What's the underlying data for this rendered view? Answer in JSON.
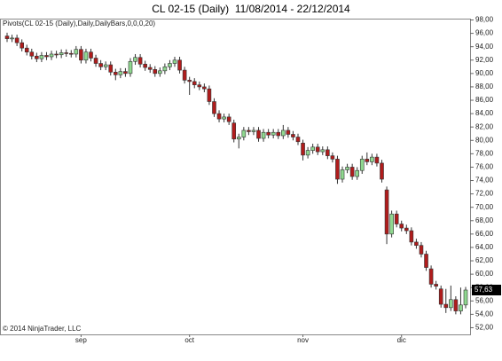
{
  "chart_data": {
    "type": "candlestick",
    "title": "CL 02-15 (Daily)  11/08/2014 - 22/12/2014",
    "subtitle": "Pivots(CL 02-15 (Daily),Daily,DailyBars,0,0,0,20)",
    "copyright": "© 2014 NinjaTrader, LLC",
    "categories": [
      null,
      null,
      null,
      null,
      null,
      null,
      null,
      null,
      null,
      null,
      null,
      null,
      null,
      null,
      null,
      "sep",
      null,
      null,
      null,
      null,
      null,
      null,
      null,
      null,
      null,
      null,
      null,
      null,
      null,
      null,
      null,
      null,
      null,
      null,
      null,
      null,
      null,
      "oct",
      null,
      null,
      null,
      null,
      null,
      null,
      null,
      null,
      null,
      null,
      null,
      null,
      null,
      null,
      null,
      null,
      null,
      null,
      null,
      null,
      null,
      null,
      "nov",
      null,
      null,
      null,
      null,
      null,
      null,
      null,
      null,
      null,
      null,
      null,
      null,
      null,
      null,
      null,
      null,
      null,
      null,
      null,
      "dic",
      null,
      null,
      null,
      null,
      null,
      null,
      null,
      null,
      null,
      null,
      null,
      null,
      null
    ],
    "open": [
      95.6,
      95.2,
      95.3,
      94.6,
      93.8,
      93.2,
      92.6,
      92.2,
      92.7,
      92.5,
      92.9,
      92.8,
      93.1,
      93.0,
      92.9,
      93.6,
      92.0,
      93.2,
      92.3,
      91.5,
      91.0,
      91.3,
      90.2,
      89.8,
      90.3,
      90.0,
      91.8,
      92.4,
      91.4,
      90.9,
      90.6,
      90.0,
      90.4,
      91.0,
      91.5,
      92.0,
      90.5,
      89.0,
      88.8,
      88.3,
      88.0,
      87.7,
      85.8,
      84.0,
      83.2,
      83.5,
      82.6,
      80.2,
      80.5,
      81.5,
      81.3,
      81.5,
      80.3,
      81.2,
      80.8,
      81.2,
      80.7,
      81.5,
      80.9,
      80.5,
      79.6,
      77.8,
      78.5,
      79.0,
      78.3,
      78.6,
      77.7,
      77.2,
      74.2,
      75.6,
      76.0,
      74.6,
      75.5,
      77.2,
      76.8,
      77.5,
      76.6,
      72.6,
      66.0,
      69.0,
      67.5,
      66.9,
      66.5,
      64.8,
      64.3,
      63.0,
      60.8,
      58.5,
      57.8,
      55.5,
      55.0,
      56.2,
      54.5,
      55.4
    ],
    "high": [
      96.1,
      95.8,
      95.8,
      95.1,
      94.3,
      93.7,
      93.1,
      93.2,
      93.2,
      93.4,
      93.4,
      93.6,
      93.6,
      93.5,
      94.1,
      94.1,
      93.7,
      93.7,
      92.8,
      92.0,
      91.8,
      91.8,
      90.7,
      90.8,
      90.8,
      92.3,
      92.9,
      92.9,
      91.9,
      91.4,
      91.1,
      90.9,
      91.5,
      92.0,
      92.5,
      92.5,
      91.0,
      89.5,
      89.3,
      88.8,
      88.5,
      88.2,
      86.3,
      84.5,
      84.0,
      84.0,
      83.1,
      81.0,
      82.0,
      82.0,
      82.0,
      82.0,
      81.7,
      81.7,
      81.7,
      81.7,
      82.3,
      82.0,
      81.4,
      81.0,
      80.1,
      79.0,
      79.5,
      79.5,
      79.1,
      79.1,
      78.2,
      77.7,
      76.1,
      76.5,
      76.5,
      76.0,
      77.7,
      78.2,
      78.0,
      78.0,
      77.1,
      73.1,
      69.5,
      69.5,
      68.0,
      67.4,
      67.0,
      65.3,
      64.8,
      63.5,
      61.3,
      59.0,
      58.3,
      57.8,
      58.3,
      56.7,
      58.0,
      58.1
    ],
    "low": [
      94.7,
      94.7,
      94.1,
      93.3,
      92.7,
      92.1,
      91.7,
      91.7,
      92.0,
      92.0,
      92.3,
      92.3,
      92.5,
      92.4,
      92.4,
      91.5,
      91.5,
      91.8,
      91.0,
      90.5,
      90.5,
      89.7,
      89.0,
      89.3,
      89.5,
      89.5,
      91.3,
      90.9,
      90.4,
      90.1,
      89.5,
      89.5,
      89.9,
      90.5,
      91.0,
      90.0,
      88.5,
      86.8,
      87.8,
      87.5,
      87.2,
      85.3,
      83.5,
      82.7,
      82.7,
      82.3,
      79.7,
      78.8,
      80.0,
      80.8,
      80.8,
      79.8,
      79.8,
      80.3,
      80.3,
      80.2,
      80.2,
      80.4,
      80.0,
      79.3,
      77.0,
      77.3,
      78.0,
      77.8,
      77.8,
      77.2,
      76.7,
      73.5,
      73.7,
      75.1,
      74.1,
      74.1,
      75.0,
      76.3,
      76.3,
      76.1,
      73.7,
      64.5,
      65.5,
      67.0,
      66.4,
      66.0,
      64.3,
      63.8,
      62.5,
      60.5,
      58.0,
      57.7,
      55.0,
      54.2,
      54.5,
      54.0,
      54.0,
      54.9
    ],
    "close": [
      95.2,
      95.3,
      94.6,
      93.8,
      93.2,
      92.6,
      92.2,
      92.7,
      92.5,
      92.9,
      92.8,
      93.1,
      93.0,
      92.9,
      93.6,
      92.0,
      93.2,
      92.3,
      91.5,
      91.0,
      91.3,
      90.2,
      89.8,
      90.3,
      90.0,
      91.8,
      92.4,
      91.4,
      90.9,
      90.6,
      90.0,
      90.4,
      91.0,
      91.5,
      92.0,
      90.5,
      89.0,
      88.8,
      88.3,
      88.0,
      87.7,
      85.8,
      84.0,
      83.2,
      83.5,
      82.8,
      80.2,
      80.5,
      81.5,
      81.3,
      81.5,
      80.3,
      81.2,
      80.8,
      81.2,
      80.7,
      81.5,
      80.9,
      80.5,
      79.8,
      77.8,
      78.5,
      79.0,
      78.3,
      78.6,
      77.7,
      77.2,
      74.2,
      75.6,
      76.0,
      74.6,
      75.5,
      77.2,
      76.8,
      77.5,
      76.6,
      74.2,
      66.0,
      69.0,
      67.5,
      66.9,
      66.5,
      64.8,
      64.3,
      63.0,
      61.0,
      58.5,
      58.2,
      55.5,
      55.0,
      56.2,
      54.5,
      55.4,
      57.63
    ],
    "up_color": "#8fd88f",
    "down_color": "#b01c1c",
    "outline_color": "#333333",
    "last_price": {
      "value": 57.63,
      "label": "57,63"
    },
    "ylim": [
      51.0,
      98.2
    ],
    "yticks": [
      {
        "value": 52,
        "label": "52,00"
      },
      {
        "value": 54,
        "label": "54,00"
      },
      {
        "value": 56,
        "label": "56,00"
      },
      {
        "value": 58,
        "label": "58,00"
      },
      {
        "value": 60,
        "label": "60,00"
      },
      {
        "value": 62,
        "label": "62,00"
      },
      {
        "value": 64,
        "label": "64,00"
      },
      {
        "value": 66,
        "label": "66,00"
      },
      {
        "value": 68,
        "label": "68,00"
      },
      {
        "value": 70,
        "label": "70,00"
      },
      {
        "value": 72,
        "label": "72,00"
      },
      {
        "value": 74,
        "label": "74,00"
      },
      {
        "value": 76,
        "label": "76,00"
      },
      {
        "value": 78,
        "label": "78,00"
      },
      {
        "value": 80,
        "label": "80,00"
      },
      {
        "value": 82,
        "label": "82,00"
      },
      {
        "value": 84,
        "label": "84,00"
      },
      {
        "value": 86,
        "label": "86,00"
      },
      {
        "value": 88,
        "label": "88,00"
      },
      {
        "value": 90,
        "label": "90,00"
      },
      {
        "value": 92,
        "label": "92,00"
      },
      {
        "value": 94,
        "label": "94,00"
      },
      {
        "value": 96,
        "label": "96,00"
      },
      {
        "value": 98,
        "label": "98,00"
      }
    ],
    "grid": false
  }
}
